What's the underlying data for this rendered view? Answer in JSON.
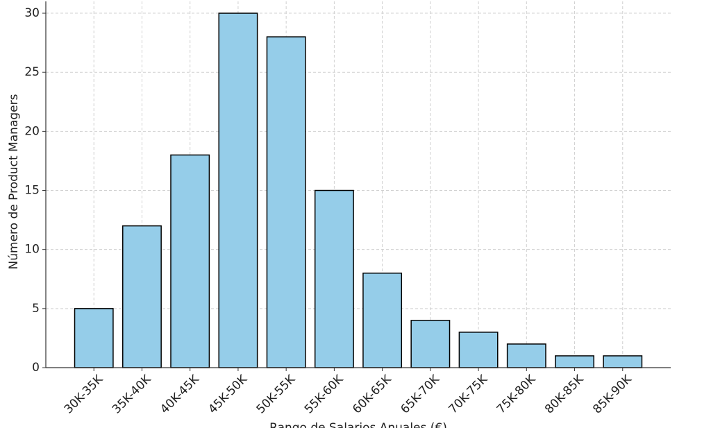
{
  "chart_data": {
    "type": "bar",
    "xlabel": "Rango de Salarios Anuales (€)",
    "ylabel": "Número de Product Managers",
    "categories": [
      "30K-35K",
      "35K-40K",
      "40K-45K",
      "45K-50K",
      "50K-55K",
      "55K-60K",
      "60K-65K",
      "65K-70K",
      "70K-75K",
      "75K-80K",
      "80K-85K",
      "85K-90K"
    ],
    "values": [
      5,
      12,
      18,
      30,
      28,
      15,
      8,
      4,
      3,
      2,
      1,
      1
    ],
    "color": "#95cde9",
    "edgecolor": "#000000",
    "ylim": [
      0,
      31
    ],
    "yticks": [
      0,
      5,
      10,
      15,
      20,
      25,
      30
    ],
    "grid": true
  }
}
